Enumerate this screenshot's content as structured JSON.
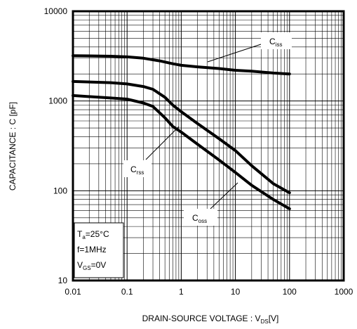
{
  "chart_data": {
    "type": "line",
    "xlabel": "DRAIN-SOURCE VOLTAGE : V",
    "xlabel_sub": "DS",
    "xlabel_unit": "[V]",
    "ylabel": "CAPACITANCE : C [pF]",
    "x_scale": "log",
    "y_scale": "log",
    "xlim": [
      0.01,
      1000
    ],
    "ylim": [
      10,
      10000
    ],
    "x_ticks": [
      {
        "value": 0.01,
        "label": "0.01"
      },
      {
        "value": 0.1,
        "label": "0.1"
      },
      {
        "value": 1,
        "label": "1"
      },
      {
        "value": 10,
        "label": "10"
      },
      {
        "value": 100,
        "label": "100"
      },
      {
        "value": 1000,
        "label": "1000"
      }
    ],
    "y_ticks": [
      {
        "value": 10,
        "label": "10"
      },
      {
        "value": 100,
        "label": "100"
      },
      {
        "value": 1000,
        "label": "1000"
      },
      {
        "value": 10000,
        "label": "10000"
      }
    ],
    "grid": true,
    "series": [
      {
        "name": "C",
        "sub": "iss",
        "x": [
          0.01,
          0.05,
          0.1,
          0.2,
          0.4,
          0.7,
          1,
          2,
          5,
          10,
          20,
          50,
          100
        ],
        "y": [
          3200,
          3150,
          3100,
          3000,
          2800,
          2600,
          2500,
          2400,
          2300,
          2200,
          2150,
          2050,
          2000
        ]
      },
      {
        "name": "C",
        "sub": "oss",
        "x": [
          0.01,
          0.05,
          0.1,
          0.2,
          0.3,
          0.5,
          0.7,
          1,
          2,
          5,
          10,
          20,
          50,
          100
        ],
        "y": [
          1650,
          1600,
          1550,
          1450,
          1350,
          1100,
          900,
          760,
          560,
          380,
          280,
          190,
          120,
          95
        ]
      },
      {
        "name": "C",
        "sub": "rss",
        "x": [
          0.01,
          0.05,
          0.1,
          0.2,
          0.3,
          0.5,
          0.7,
          1,
          2,
          5,
          10,
          20,
          50,
          100
        ],
        "y": [
          1150,
          1080,
          1050,
          950,
          870,
          650,
          520,
          450,
          330,
          220,
          160,
          115,
          80,
          63
        ]
      }
    ],
    "labels": [
      {
        "base": "C",
        "sub": "iss"
      },
      {
        "base": "C",
        "sub": "rss"
      },
      {
        "base": "C",
        "sub": "oss"
      }
    ],
    "conditions": [
      {
        "main": "T",
        "sub": "a",
        "rest": "=25°C"
      },
      {
        "main": "f=1MHz",
        "sub": "",
        "rest": ""
      },
      {
        "main": "V",
        "sub": "GS",
        "rest": "=0V"
      }
    ]
  }
}
